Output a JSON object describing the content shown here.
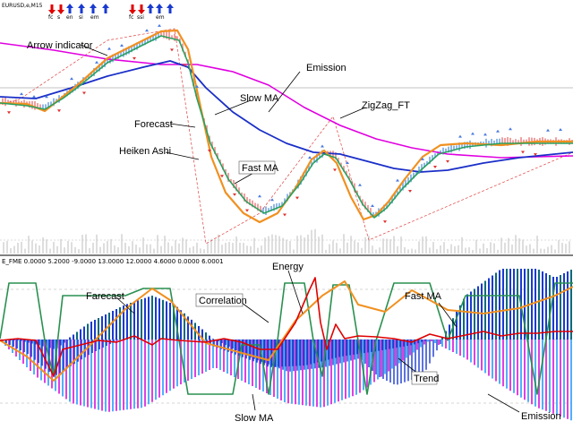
{
  "symbol_label": "EURUSD,e,M15",
  "arrow_text": [
    "fc",
    "s",
    "en",
    "si",
    "em",
    "fc",
    "ssi",
    "em"
  ],
  "indicator_header": "E_FME 0.0000 5.2000 -9.0000 13.0000 12.0000 4.6000 0.0000 6.0001",
  "colors": {
    "emission": "#e000e0",
    "slow_ma": "#1a2fc8",
    "fast_ma": "#2aa060",
    "forecast": "#f09020",
    "heiken_bull": "#8fb8e8",
    "heiken_bear": "#f0a0a0",
    "zigzag": "#e04040",
    "energy": "#e00000",
    "correlation": "#2a9050",
    "trend_dark": "#0a6a7a",
    "trend_blue": "#1a3acf",
    "trend_light": "#50b0ff",
    "trend_magenta": "#e040e0",
    "volume": "#c8c8c8"
  },
  "chart_data": [
    {
      "type": "line",
      "title": "",
      "pane": "price",
      "x_range": [
        0,
        640
      ],
      "series": [
        {
          "name": "Emission",
          "points": [
            [
              0,
              48
            ],
            [
              60,
              56
            ],
            [
              120,
              66
            ],
            [
              180,
              72
            ],
            [
              220,
              72
            ],
            [
              260,
              80
            ],
            [
              300,
              95
            ],
            [
              340,
              120
            ],
            [
              380,
              140
            ],
            [
              420,
              155
            ],
            [
              460,
              165
            ],
            [
              500,
              172
            ],
            [
              560,
              176
            ],
            [
              640,
              174
            ]
          ]
        },
        {
          "name": "Slow MA",
          "points": [
            [
              0,
              108
            ],
            [
              40,
              110
            ],
            [
              80,
              98
            ],
            [
              120,
              85
            ],
            [
              160,
              75
            ],
            [
              190,
              68
            ],
            [
              210,
              75
            ],
            [
              230,
              98
            ],
            [
              260,
              125
            ],
            [
              290,
              145
            ],
            [
              320,
              160
            ],
            [
              350,
              170
            ],
            [
              380,
              172
            ],
            [
              410,
              180
            ],
            [
              440,
              188
            ],
            [
              470,
              192
            ],
            [
              500,
              190
            ],
            [
              540,
              182
            ],
            [
              580,
              176
            ],
            [
              640,
              170
            ]
          ]
        },
        {
          "name": "Fast MA",
          "points": [
            [
              0,
              115
            ],
            [
              30,
              118
            ],
            [
              50,
              122
            ],
            [
              70,
              110
            ],
            [
              90,
              95
            ],
            [
              120,
              70
            ],
            [
              150,
              55
            ],
            [
              180,
              40
            ],
            [
              200,
              45
            ],
            [
              210,
              70
            ],
            [
              220,
              110
            ],
            [
              235,
              160
            ],
            [
              255,
              200
            ],
            [
              275,
              225
            ],
            [
              295,
              238
            ],
            [
              315,
              230
            ],
            [
              335,
              205
            ],
            [
              350,
              182
            ],
            [
              362,
              172
            ],
            [
              375,
              176
            ],
            [
              390,
              200
            ],
            [
              405,
              228
            ],
            [
              418,
              243
            ],
            [
              432,
              232
            ],
            [
              450,
              210
            ],
            [
              470,
              190
            ],
            [
              490,
              172
            ],
            [
              520,
              164
            ],
            [
              560,
              160
            ],
            [
              600,
              160
            ],
            [
              640,
              160
            ]
          ]
        },
        {
          "name": "Forecast",
          "points": [
            [
              0,
              115
            ],
            [
              30,
              116
            ],
            [
              50,
              124
            ],
            [
              70,
              108
            ],
            [
              90,
              92
            ],
            [
              120,
              65
            ],
            [
              150,
              50
            ],
            [
              180,
              35
            ],
            [
              198,
              34
            ],
            [
              210,
              55
            ],
            [
              222,
              110
            ],
            [
              236,
              175
            ],
            [
              252,
              215
            ],
            [
              272,
              238
            ],
            [
              290,
              248
            ],
            [
              310,
              238
            ],
            [
              330,
              210
            ],
            [
              348,
              178
            ],
            [
              362,
              168
            ],
            [
              376,
              182
            ],
            [
              392,
              220
            ],
            [
              406,
              245
            ],
            [
              420,
              240
            ],
            [
              434,
              225
            ],
            [
              452,
              200
            ],
            [
              472,
              175
            ],
            [
              492,
              162
            ],
            [
              520,
              160
            ],
            [
              560,
              162
            ],
            [
              600,
              158
            ],
            [
              640,
              158
            ]
          ]
        },
        {
          "name": "ZigZag_FT",
          "points": [
            [
              0,
              116
            ],
            [
              20,
              112
            ],
            [
              120,
              45
            ],
            [
              195,
              32
            ],
            [
              230,
              272
            ],
            [
              290,
              238
            ],
            [
              372,
              130
            ],
            [
              412,
              268
            ],
            [
              640,
              170
            ]
          ]
        }
      ]
    },
    {
      "type": "bar",
      "title": "",
      "pane": "indicator",
      "bar_spacing": 4,
      "series": [
        {
          "name": "Energy",
          "points": [
            [
              0,
              380
            ],
            [
              20,
              378
            ],
            [
              40,
              380
            ],
            [
              60,
              420
            ],
            [
              70,
              390
            ],
            [
              90,
              385
            ],
            [
              110,
              380
            ],
            [
              130,
              382
            ],
            [
              150,
              375
            ],
            [
              170,
              385
            ],
            [
              180,
              378
            ],
            [
              200,
              380
            ],
            [
              230,
              382
            ],
            [
              250,
              378
            ],
            [
              270,
              382
            ],
            [
              290,
              390
            ],
            [
              310,
              390
            ],
            [
              330,
              360
            ],
            [
              345,
              325
            ],
            [
              352,
              310
            ],
            [
              358,
              360
            ],
            [
              365,
              390
            ],
            [
              375,
              362
            ],
            [
              385,
              378
            ],
            [
              400,
              375
            ],
            [
              420,
              376
            ],
            [
              440,
              378
            ],
            [
              460,
              382
            ],
            [
              480,
              373
            ],
            [
              500,
              378
            ],
            [
              520,
              374
            ],
            [
              540,
              370
            ],
            [
              560,
              375
            ],
            [
              580,
              372
            ],
            [
              600,
              372
            ],
            [
              620,
              370
            ],
            [
              640,
              370
            ]
          ]
        },
        {
          "name": "Correlation",
          "points": [
            [
              0,
              378
            ],
            [
              10,
              316
            ],
            [
              40,
              316
            ],
            [
              50,
              380
            ],
            [
              60,
              420
            ],
            [
              70,
              330
            ],
            [
              140,
              330
            ],
            [
              160,
              322
            ],
            [
              190,
              322
            ],
            [
              200,
              380
            ],
            [
              210,
              440
            ],
            [
              260,
              440
            ],
            [
              270,
              385
            ],
            [
              290,
              385
            ],
            [
              300,
              440
            ],
            [
              310,
              380
            ],
            [
              318,
              316
            ],
            [
              340,
              316
            ],
            [
              350,
              380
            ],
            [
              360,
              420
            ],
            [
              372,
              318
            ],
            [
              390,
              318
            ],
            [
              400,
              380
            ],
            [
              410,
              440
            ],
            [
              420,
              380
            ],
            [
              440,
              316
            ],
            [
              480,
              316
            ],
            [
              500,
              380
            ],
            [
              520,
              330
            ],
            [
              580,
              330
            ],
            [
              600,
              440
            ],
            [
              620,
              316
            ],
            [
              640,
              316
            ]
          ]
        },
        {
          "name": "Farecast",
          "points": [
            [
              0,
              380
            ],
            [
              30,
              398
            ],
            [
              60,
              425
            ],
            [
              100,
              386
            ],
            [
              140,
              345
            ],
            [
              170,
              322
            ],
            [
              190,
              335
            ],
            [
              230,
              383
            ],
            [
              270,
              394
            ],
            [
              300,
              402
            ],
            [
              330,
              358
            ],
            [
              360,
              330
            ],
            [
              385,
              314
            ],
            [
              400,
              340
            ],
            [
              430,
              348
            ],
            [
              460,
              324
            ],
            [
              500,
              346
            ],
            [
              540,
              350
            ],
            [
              580,
              344
            ],
            [
              620,
              330
            ],
            [
              640,
              320
            ]
          ]
        },
        {
          "name": "Trend",
          "points": [
            [
              0,
              380
            ],
            [
              20,
              380
            ],
            [
              60,
              390
            ],
            [
              100,
              360
            ],
            [
              140,
              340
            ],
            [
              170,
              330
            ],
            [
              195,
              340
            ],
            [
              240,
              380
            ],
            [
              280,
              400
            ],
            [
              320,
              415
            ],
            [
              360,
              410
            ],
            [
              400,
              400
            ],
            [
              420,
              420
            ],
            [
              440,
              430
            ],
            [
              470,
              420
            ],
            [
              520,
              330
            ],
            [
              560,
              300
            ],
            [
              600,
              300
            ],
            [
              620,
              310
            ],
            [
              640,
              300
            ]
          ]
        },
        {
          "name": "Slow MA",
          "points": [
            [
              0,
              380
            ],
            [
              30,
              395
            ],
            [
              60,
              420
            ],
            [
              100,
              395
            ],
            [
              140,
              375
            ],
            [
              180,
              360
            ],
            [
              220,
              380
            ],
            [
              260,
              395
            ],
            [
              300,
              410
            ],
            [
              340,
              408
            ],
            [
              380,
              398
            ],
            [
              420,
              392
            ],
            [
              460,
              385
            ],
            [
              500,
              372
            ],
            [
              540,
              362
            ],
            [
              580,
              355
            ],
            [
              620,
              350
            ],
            [
              640,
              348
            ]
          ]
        },
        {
          "name": "Emission",
          "points": [
            [
              0,
              380
            ],
            [
              40,
              420
            ],
            [
              80,
              450
            ],
            [
              120,
              460
            ],
            [
              160,
              455
            ],
            [
              200,
              430
            ],
            [
              240,
              410
            ],
            [
              280,
              430
            ],
            [
              320,
              450
            ],
            [
              360,
              455
            ],
            [
              400,
              440
            ],
            [
              440,
              410
            ],
            [
              480,
              380
            ],
            [
              520,
              400
            ],
            [
              560,
              430
            ],
            [
              600,
              455
            ],
            [
              640,
              470
            ]
          ]
        }
      ]
    }
  ],
  "annotations": [
    {
      "text": "Arrow indicator"
    },
    {
      "text": "Emission"
    },
    {
      "text": "Slow MA"
    },
    {
      "text": "ZigZag_FT"
    },
    {
      "text": "Forecast"
    },
    {
      "text": "Heiken Ashi"
    },
    {
      "text": "Fast MA"
    },
    {
      "text": "Energy"
    },
    {
      "text": "Farecast"
    },
    {
      "text": "Correlation"
    },
    {
      "text": "Fast MA"
    },
    {
      "text": "Trend"
    },
    {
      "text": "Slow MA"
    },
    {
      "text": "Emission"
    }
  ]
}
